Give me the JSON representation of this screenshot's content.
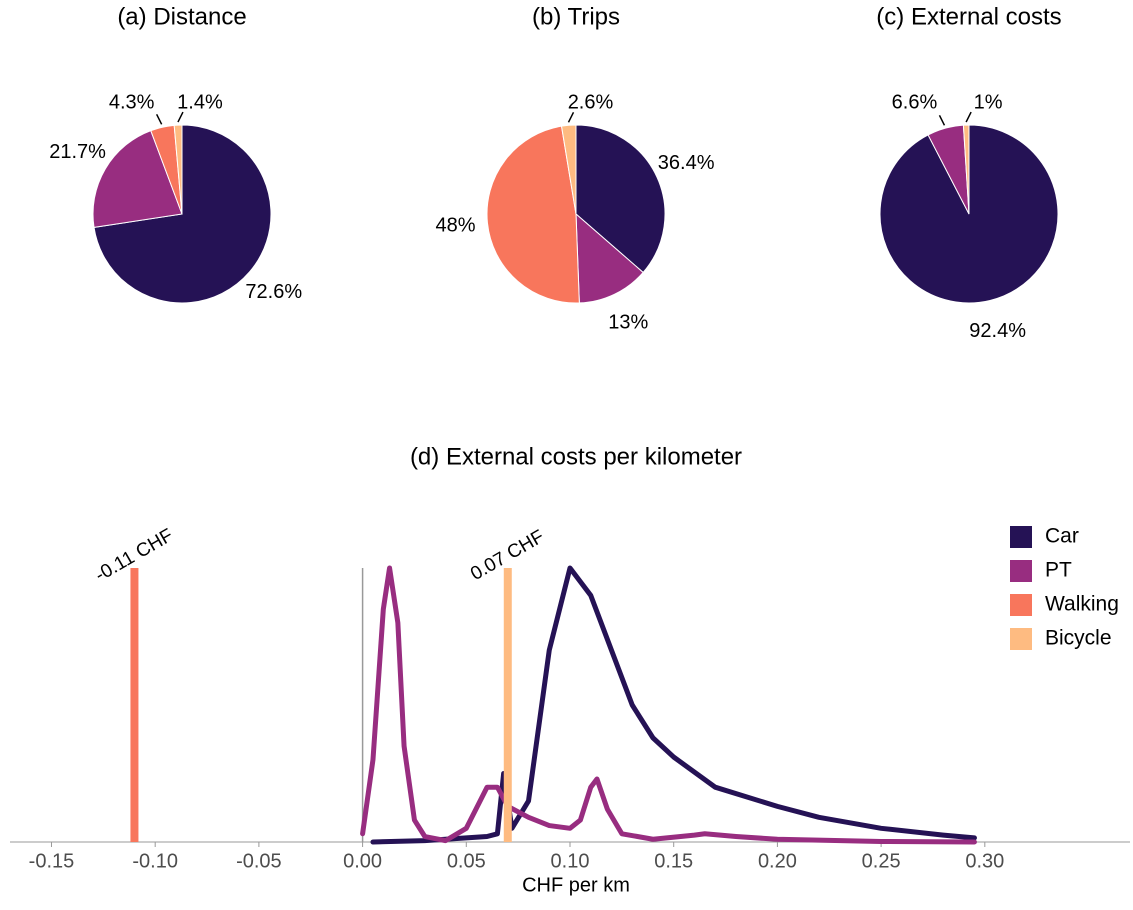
{
  "chart_data": [
    {
      "type": "pie",
      "title": "(a) Distance",
      "categories": [
        "Car",
        "PT",
        "Walking",
        "Bicycle"
      ],
      "colors": [
        "#251255",
        "#982d80",
        "#f8765c",
        "#febb81"
      ],
      "values": [
        72.6,
        21.7,
        4.3,
        1.4
      ],
      "value_labels": [
        "72.6%",
        "21.7%",
        "4.3%",
        "1.4%"
      ]
    },
    {
      "type": "pie",
      "title": "(b) Trips",
      "categories": [
        "Car",
        "PT",
        "Walking",
        "Bicycle"
      ],
      "colors": [
        "#251255",
        "#982d80",
        "#f8765c",
        "#febb81"
      ],
      "values": [
        36.4,
        13,
        48,
        2.6
      ],
      "value_labels": [
        "36.4%",
        "13%",
        "48%",
        "2.6%"
      ]
    },
    {
      "type": "pie",
      "title": "(c) External costs",
      "categories": [
        "Car",
        "PT",
        "Bicycle"
      ],
      "colors": [
        "#251255",
        "#982d80",
        "#febb81"
      ],
      "values": [
        92.4,
        6.6,
        1
      ],
      "value_labels": [
        "92.4%",
        "6.6%",
        "1%"
      ]
    },
    {
      "type": "density",
      "title": "(d) External costs per kilometer",
      "x_label": "CHF per km",
      "xlim": [
        -0.17,
        0.37
      ],
      "ylim": [
        0,
        1
      ],
      "xticks": [
        -0.15,
        {
          "value": -0.1,
          "label": "-0.10"
        },
        -0.05,
        {
          "value": 0,
          "label": "0.00"
        },
        0.05,
        {
          "value": 0.1,
          "label": "0.10"
        },
        0.15,
        {
          "value": 0.2,
          "label": "0.20"
        },
        0.25,
        {
          "value": 0.3,
          "label": "0.30"
        }
      ],
      "series": [
        {
          "name": "Car",
          "color": "#251255",
          "x": [
            0.005,
            0.03,
            0.06,
            0.065,
            0.068,
            0.072,
            0.08,
            0.09,
            0.1,
            0.11,
            0.12,
            0.13,
            0.14,
            0.15,
            0.17,
            0.2,
            0.22,
            0.25,
            0.28,
            0.295
          ],
          "values": [
            0,
            0.005,
            0.02,
            0.03,
            0.25,
            0.05,
            0.15,
            0.7,
            1,
            0.9,
            0.7,
            0.5,
            0.38,
            0.31,
            0.2,
            0.13,
            0.09,
            0.05,
            0.025,
            0.015
          ]
        },
        {
          "name": "PT",
          "color": "#982d80",
          "x": [
            0,
            0.005,
            0.01,
            0.013,
            0.017,
            0.02,
            0.025,
            0.03,
            0.04,
            0.05,
            0.06,
            0.065,
            0.07,
            0.08,
            0.09,
            0.1,
            0.105,
            0.11,
            0.113,
            0.118,
            0.125,
            0.14,
            0.16,
            0.165,
            0.18,
            0.2,
            0.25,
            0.295
          ],
          "values": [
            0.03,
            0.3,
            0.85,
            1,
            0.8,
            0.35,
            0.08,
            0.02,
            0.005,
            0.05,
            0.2,
            0.2,
            0.13,
            0.09,
            0.06,
            0.05,
            0.08,
            0.2,
            0.23,
            0.12,
            0.03,
            0.01,
            0.025,
            0.03,
            0.02,
            0.01,
            0.002,
            0
          ]
        },
        {
          "name": "Walking",
          "color": "#f8765c",
          "kind": "vline",
          "at": -0.11,
          "label": "-0.11 CHF"
        },
        {
          "name": "Bicycle",
          "color": "#febb81",
          "kind": "vline",
          "at": 0.07,
          "label": "0.07 CHF"
        }
      ]
    }
  ]
}
